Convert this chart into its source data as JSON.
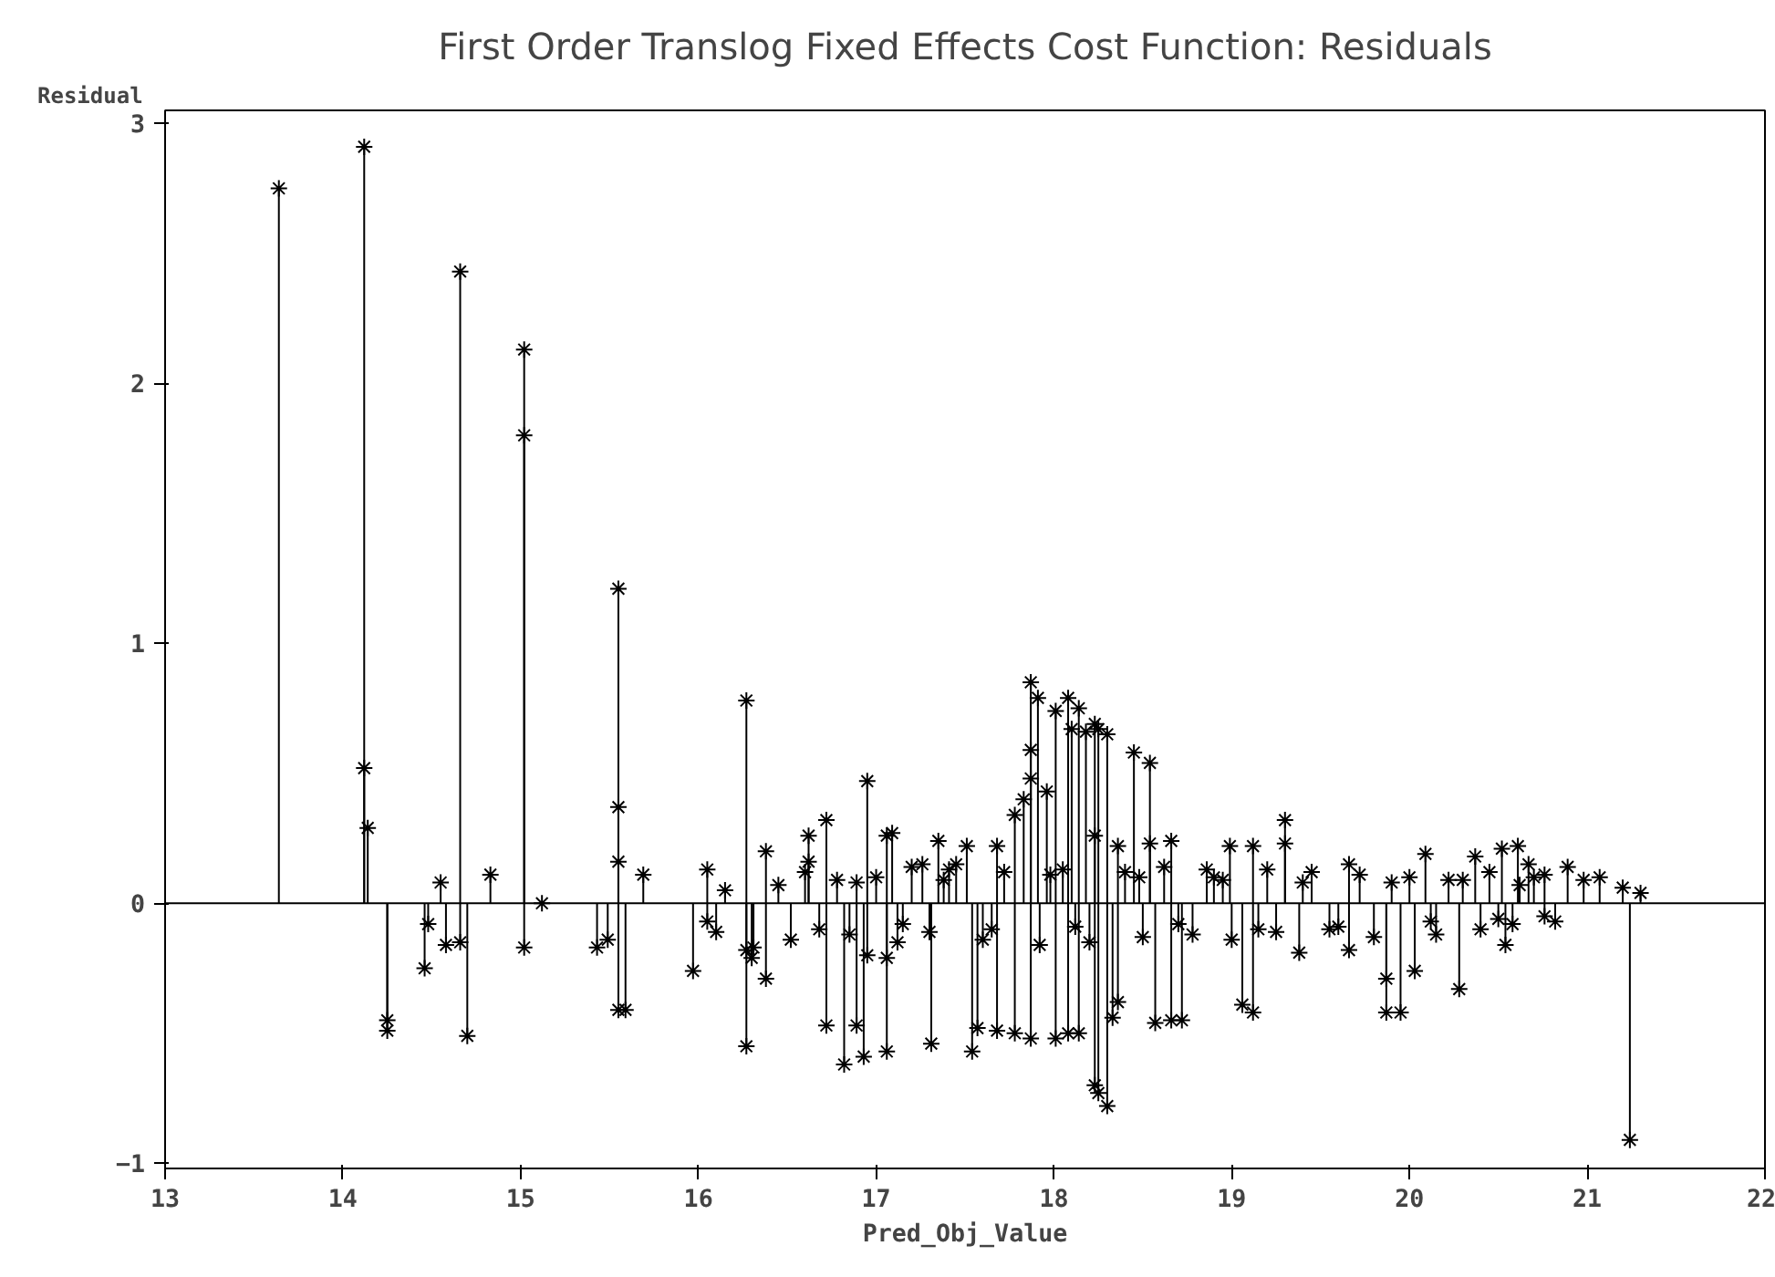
{
  "chart_data": {
    "type": "lollipop",
    "title": "First Order Translog Fixed Effects Cost Function: Residuals",
    "xlabel": "Pred_Obj_Value",
    "ylabel": "Residual",
    "xlim": [
      13,
      22
    ],
    "xticks": [
      13,
      14,
      15,
      16,
      17,
      18,
      19,
      20,
      21,
      22
    ],
    "ylim": [
      -1.02,
      3.05
    ],
    "yticks": [
      -1,
      0,
      1,
      2,
      3
    ],
    "marker": "cross",
    "ref_lines": [
      {
        "axis": "y",
        "value": 0,
        "label": null
      }
    ],
    "series": [
      {
        "color": "#000000",
        "x": [
          13.64,
          14.12,
          14.12,
          14.14,
          14.25,
          14.25,
          14.46,
          14.48,
          14.55,
          14.58,
          14.66,
          14.66,
          14.7,
          14.83,
          15.02,
          15.02,
          15.02,
          15.12,
          15.43,
          15.49,
          15.55,
          15.55,
          15.55,
          15.55,
          15.59,
          15.69,
          15.97,
          16.05,
          16.05,
          16.1,
          16.15,
          16.27,
          16.27,
          16.27,
          16.3,
          16.31,
          16.38,
          16.38,
          16.45,
          16.52,
          16.62,
          16.62,
          16.72,
          16.72,
          16.82,
          16.89,
          16.89,
          16.93,
          16.95,
          16.95,
          17.06,
          17.06,
          17.06,
          17.09,
          17.26,
          17.31,
          17.35,
          17.41,
          17.51,
          17.54,
          17.57,
          17.68,
          17.68,
          17.78,
          17.78,
          17.83,
          17.87,
          17.87,
          17.87,
          17.87,
          17.91,
          17.96,
          18.01,
          18.01,
          18.08,
          18.08,
          18.1,
          18.14,
          18.14,
          18.18,
          18.23,
          18.23,
          18.23,
          18.25,
          18.25,
          18.3,
          18.3,
          18.33,
          18.36,
          18.36,
          18.45,
          18.54,
          18.54,
          18.57,
          18.66,
          18.66,
          18.72,
          18.86,
          18.99,
          19.06,
          19.12,
          19.12,
          19.3,
          19.3,
          19.38,
          19.66,
          19.66,
          19.87,
          19.87,
          19.95,
          20.03,
          20.09,
          20.28,
          20.37,
          20.52,
          20.54,
          20.61,
          20.67,
          20.76,
          20.76,
          20.89,
          20.98,
          21.07,
          21.2,
          21.24,
          21.3,
          16.6,
          16.68,
          16.78,
          16.85,
          17.0,
          17.12,
          17.2,
          17.3,
          17.45,
          17.6,
          17.72,
          17.92,
          18.05,
          18.2,
          18.4,
          18.5,
          18.62,
          18.78,
          18.9,
          19.0,
          19.2,
          19.25,
          19.45,
          19.55,
          19.72,
          19.8,
          20.0,
          20.15,
          20.22,
          20.4,
          20.45,
          20.58,
          20.7,
          20.82,
          17.15,
          17.38,
          17.65,
          17.98,
          18.12,
          18.48,
          18.7,
          18.95,
          19.15,
          19.4,
          19.6,
          19.9,
          20.12,
          20.3,
          20.5,
          20.62
        ],
        "values": [
          2.75,
          2.91,
          0.52,
          0.29,
          -0.45,
          -0.49,
          -0.25,
          -0.08,
          0.08,
          -0.16,
          2.43,
          -0.15,
          -0.51,
          0.11,
          2.13,
          1.8,
          -0.17,
          0.0,
          -0.17,
          -0.14,
          1.21,
          0.37,
          0.16,
          -0.41,
          -0.41,
          0.11,
          -0.26,
          0.13,
          -0.07,
          -0.11,
          0.05,
          0.78,
          -0.55,
          -0.18,
          -0.21,
          -0.17,
          0.2,
          -0.29,
          0.07,
          -0.14,
          0.26,
          0.16,
          0.32,
          -0.47,
          -0.62,
          0.08,
          -0.47,
          -0.59,
          0.47,
          -0.2,
          -0.57,
          0.26,
          -0.21,
          0.27,
          0.15,
          -0.54,
          0.24,
          0.13,
          0.22,
          -0.57,
          -0.48,
          0.22,
          -0.49,
          0.34,
          -0.5,
          0.4,
          0.85,
          0.59,
          0.48,
          -0.52,
          0.79,
          0.43,
          0.74,
          -0.52,
          0.79,
          -0.5,
          0.67,
          0.75,
          -0.5,
          0.66,
          0.69,
          -0.7,
          0.26,
          0.67,
          -0.73,
          -0.78,
          0.65,
          -0.44,
          0.22,
          -0.38,
          0.58,
          0.54,
          0.23,
          -0.46,
          0.24,
          -0.45,
          -0.45,
          0.13,
          0.22,
          -0.39,
          -0.42,
          0.22,
          0.32,
          0.23,
          -0.19,
          0.15,
          -0.18,
          -0.42,
          -0.29,
          -0.42,
          -0.26,
          0.19,
          -0.33,
          0.18,
          0.21,
          -0.16,
          0.22,
          0.15,
          0.11,
          -0.05,
          0.14,
          0.09,
          0.1,
          0.06,
          -0.91,
          0.04,
          0.12,
          -0.1,
          0.09,
          -0.12,
          0.1,
          -0.15,
          0.14,
          -0.11,
          0.15,
          -0.14,
          0.12,
          -0.16,
          0.13,
          -0.15,
          0.12,
          -0.13,
          0.14,
          -0.12,
          0.1,
          -0.14,
          0.13,
          -0.11,
          0.12,
          -0.1,
          0.11,
          -0.13,
          0.1,
          -0.12,
          0.09,
          -0.1,
          0.12,
          -0.08,
          0.1,
          -0.07,
          -0.08,
          0.09,
          -0.1,
          0.11,
          -0.09,
          0.1,
          -0.08,
          0.09,
          -0.1,
          0.08,
          -0.09,
          0.08,
          -0.07,
          0.09,
          -0.06,
          0.07
        ]
      }
    ]
  }
}
